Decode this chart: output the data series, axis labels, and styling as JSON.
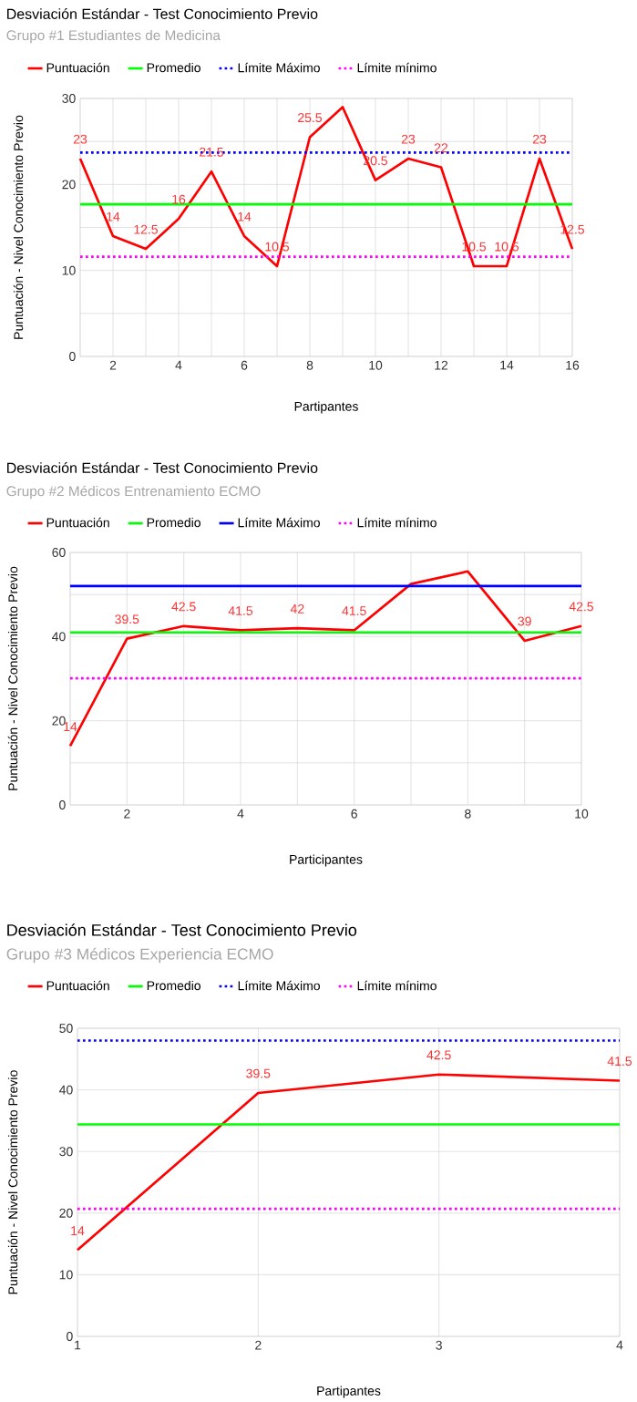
{
  "chart_data": [
    {
      "type": "line",
      "title": "Desviación Estándar - Test Conocimiento Previo",
      "subtitle": "Grupo #1 Estudiantes de Medicina",
      "xlabel": "Partipantes",
      "ylabel": "Puntuación - Nivel Conocimiento Previo",
      "x": [
        1,
        2,
        3,
        4,
        5,
        6,
        7,
        8,
        9,
        10,
        11,
        12,
        13,
        14,
        15,
        16
      ],
      "xlim": [
        1,
        16
      ],
      "xticks": [
        {
          "value": 1,
          "label": null
        },
        2,
        {
          "value": 3,
          "label": null
        },
        4,
        {
          "value": 5,
          "label": null
        },
        6,
        {
          "value": 7,
          "label": null
        },
        8,
        {
          "value": 9,
          "label": null
        },
        10,
        {
          "value": 11,
          "label": null
        },
        12,
        {
          "value": 13,
          "label": null
        },
        14,
        {
          "value": 15,
          "label": null
        },
        16
      ],
      "ylim": [
        0,
        30
      ],
      "yticks": [
        0,
        {
          "value": 5,
          "label": null
        },
        10,
        {
          "value": 15,
          "label": null
        },
        20,
        {
          "value": 25,
          "label": null
        },
        30
      ],
      "grid": true,
      "legend": "top",
      "series": [
        {
          "name": "Puntuación",
          "color": "#ff0000",
          "line_style": "solid",
          "values": [
            23,
            14,
            12.5,
            16,
            21.5,
            14,
            10.5,
            25.5,
            29,
            20.5,
            23,
            22,
            10.5,
            10.5,
            23,
            12.5
          ],
          "value_labels": [
            "23",
            "14",
            "12.5",
            "16",
            "21.5",
            "14",
            "10.5",
            "25.5",
            null,
            "20.5",
            "23",
            "22",
            "10.5",
            "10.5",
            "23",
            "12.5"
          ]
        },
        {
          "name": "Promedio",
          "color": "#00ff00",
          "line_style": "solid",
          "x": [
            1,
            16
          ],
          "values": [
            17.7,
            17.7
          ]
        },
        {
          "name": "Límite Máximo",
          "color": "#0000ff",
          "line_style": "dotted",
          "x": [
            1,
            16
          ],
          "values": [
            23.7,
            23.7
          ]
        },
        {
          "name": "Límite mínimo",
          "color": "#ff00ff",
          "line_style": "dotted",
          "x": [
            1,
            16
          ],
          "values": [
            11.6,
            11.6
          ]
        }
      ]
    },
    {
      "type": "line",
      "title": "Desviación Estándar - Test Conocimiento Previo",
      "subtitle": "Grupo #2 Médicos Entrenamiento ECMO",
      "xlabel": "Participantes",
      "ylabel": "Puntuación - Nivel Conocimiento Previo",
      "x": [
        1,
        2,
        3,
        4,
        5,
        6,
        7,
        8,
        9,
        10
      ],
      "xlim": [
        1,
        10
      ],
      "xticks": [
        {
          "value": 1,
          "label": null
        },
        2,
        {
          "value": 3,
          "label": null
        },
        4,
        {
          "value": 5,
          "label": null
        },
        6,
        {
          "value": 7,
          "label": null
        },
        8,
        {
          "value": 9,
          "label": null
        },
        10
      ],
      "ylim": [
        0,
        60
      ],
      "yticks": [
        0,
        {
          "value": 10,
          "label": null
        },
        20,
        {
          "value": 30,
          "label": null
        },
        40,
        {
          "value": 50,
          "label": null
        },
        60
      ],
      "grid": true,
      "legend": "top",
      "series": [
        {
          "name": "Puntuación",
          "color": "#ff0000",
          "line_style": "solid",
          "values": [
            14,
            39.5,
            42.5,
            41.5,
            42,
            41.5,
            52.5,
            55.5,
            39,
            42.5
          ],
          "value_labels": [
            "14",
            "39.5",
            "42.5",
            "41.5",
            "42",
            "41.5",
            null,
            null,
            "39",
            "42.5"
          ]
        },
        {
          "name": "Promedio",
          "color": "#00ff00",
          "line_style": "solid",
          "x": [
            1,
            10
          ],
          "values": [
            41,
            41
          ]
        },
        {
          "name": "Límite Máximo",
          "color": "#0000ff",
          "line_style": "solid",
          "x": [
            1,
            10
          ],
          "values": [
            52,
            52
          ]
        },
        {
          "name": "Límite mínimo",
          "color": "#ff00ff",
          "line_style": "dotted",
          "x": [
            1,
            10
          ],
          "values": [
            30.1,
            30.1
          ]
        }
      ]
    },
    {
      "type": "line",
      "title": "Desviación Estándar - Test Conocimiento Previo",
      "subtitle": "Grupo #3 Médicos Experiencia ECMO",
      "xlabel": "Partipantes",
      "ylabel": "Puntuación - Nivel Conocimiento Previo",
      "x": [
        1,
        2,
        3,
        4
      ],
      "xlim": [
        1,
        4
      ],
      "xticks": [
        1,
        2,
        3,
        4
      ],
      "ylim": [
        0,
        50
      ],
      "yticks": [
        0,
        10,
        20,
        30,
        40,
        50
      ],
      "grid": true,
      "legend": "top",
      "series": [
        {
          "name": "Puntuación",
          "color": "#ff0000",
          "line_style": "solid",
          "values": [
            14,
            39.5,
            42.5,
            41.5
          ],
          "value_labels": [
            "14",
            "39.5",
            "42.5",
            "41.5"
          ]
        },
        {
          "name": "Promedio",
          "color": "#00ff00",
          "line_style": "solid",
          "x": [
            1,
            4
          ],
          "values": [
            34.4,
            34.4
          ]
        },
        {
          "name": "Límite Máximo",
          "color": "#0000ff",
          "line_style": "dotted",
          "x": [
            1,
            4
          ],
          "values": [
            48,
            48
          ]
        },
        {
          "name": "Límite mínimo",
          "color": "#ff00ff",
          "line_style": "dotted",
          "x": [
            1,
            4
          ],
          "values": [
            20.7,
            20.7
          ]
        }
      ]
    }
  ]
}
